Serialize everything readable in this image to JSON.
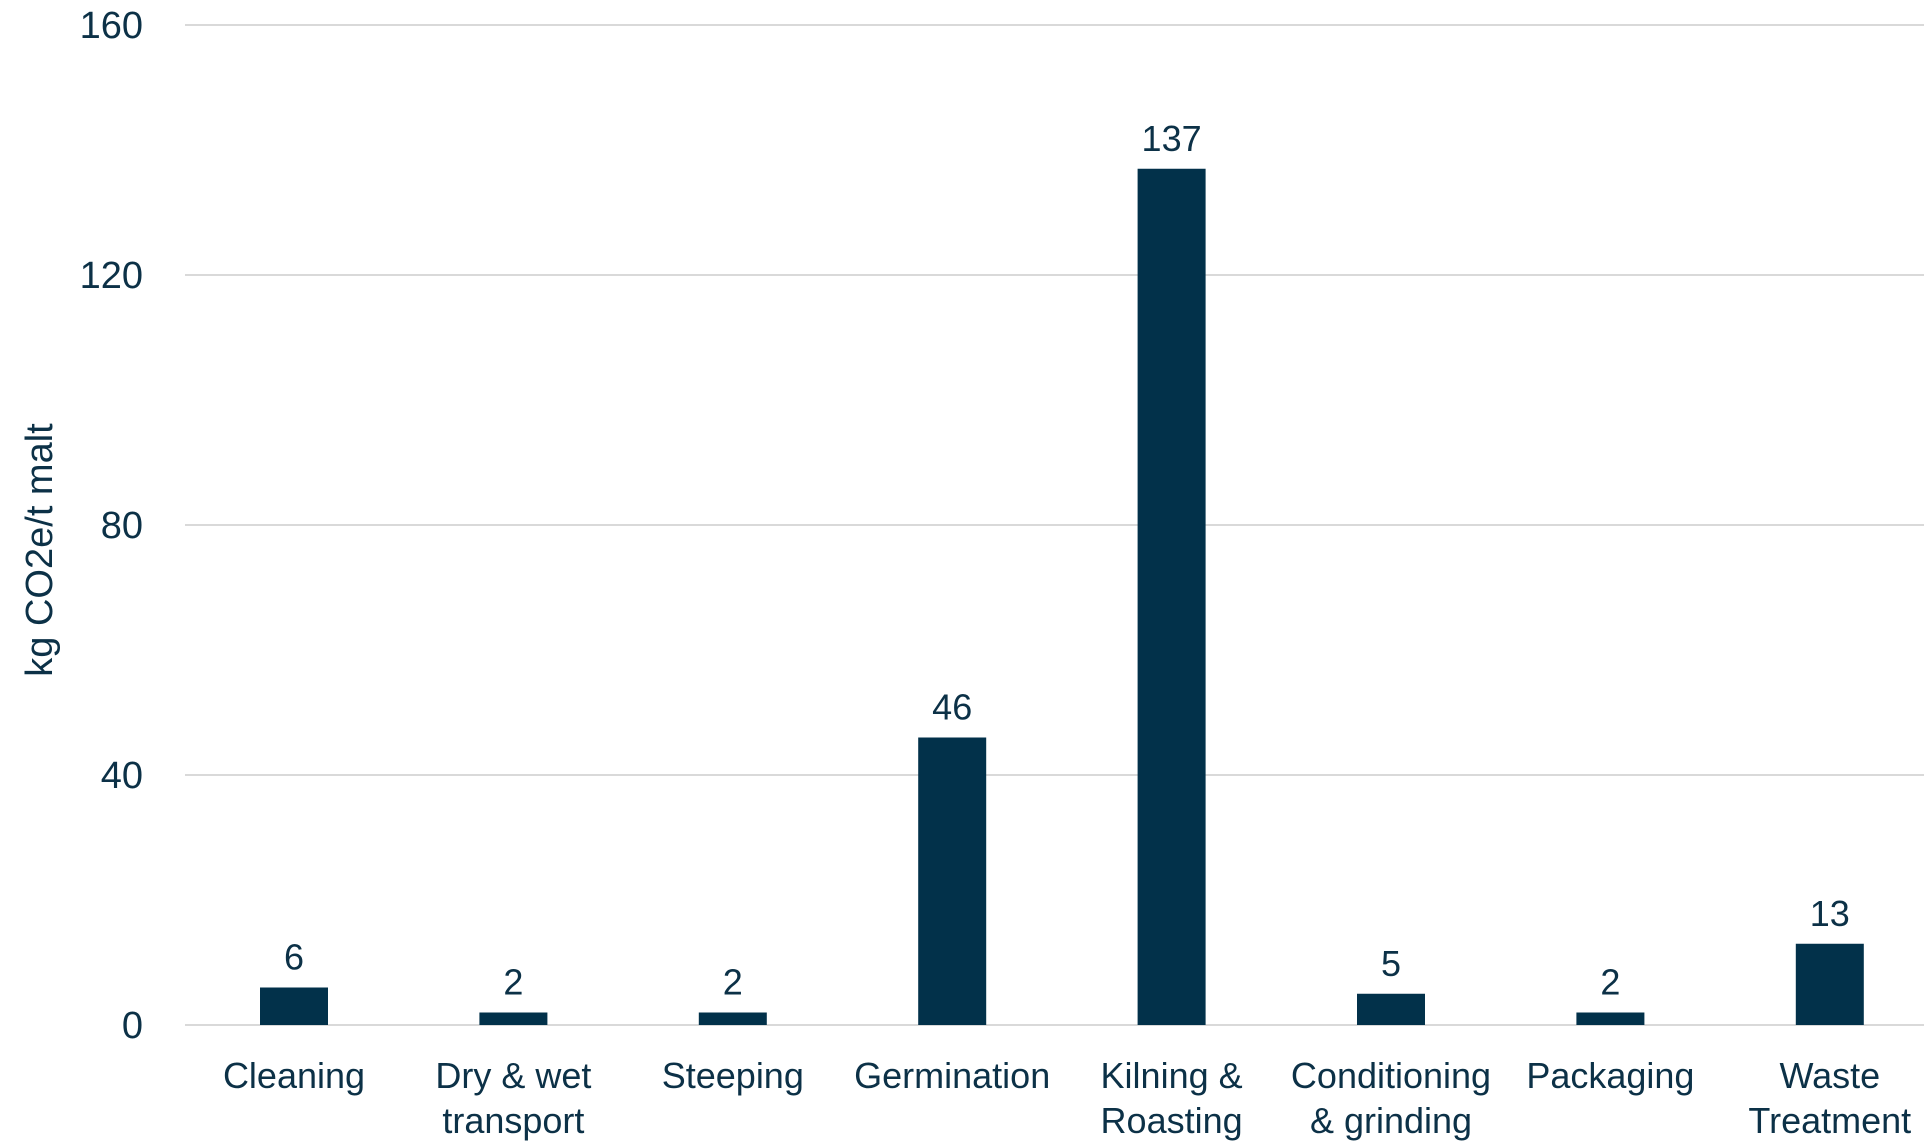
{
  "chart_data": {
    "type": "bar",
    "categories": [
      [
        "Cleaning"
      ],
      [
        "Dry & wet",
        "transport"
      ],
      [
        "Steeping"
      ],
      [
        "Germination"
      ],
      [
        "Kilning &",
        "Roasting"
      ],
      [
        "Conditioning",
        "& grinding"
      ],
      [
        "Packaging"
      ],
      [
        "Waste",
        "Treatment"
      ]
    ],
    "values": [
      6,
      2,
      2,
      46,
      137,
      5,
      2,
      13
    ],
    "data_labels": [
      "6",
      "2",
      "2",
      "46",
      "137",
      "5",
      "2",
      "13"
    ],
    "ylabel": "kg CO2e/t malt",
    "ylim": [
      0,
      160
    ],
    "yticks": [
      0,
      40,
      80,
      120,
      160
    ],
    "grid": true,
    "bar_color": "#02314a",
    "gridline_color": "#d9d9d9",
    "text_color": "#0c3147"
  }
}
